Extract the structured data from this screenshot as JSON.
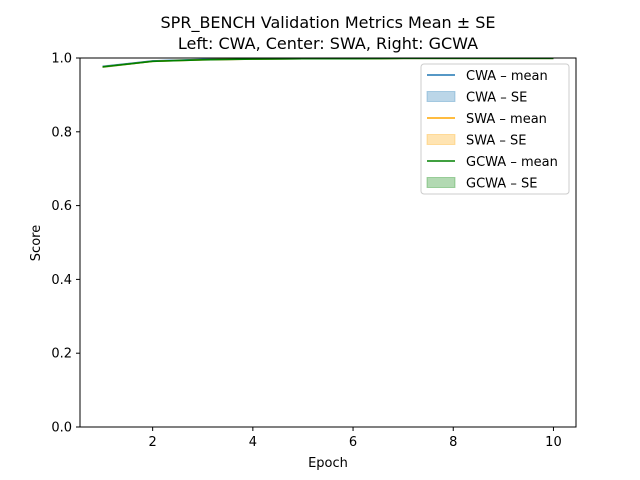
{
  "chart_data": {
    "type": "line",
    "title": "SPR_BENCH Validation Metrics Mean ± SE",
    "subtitle": "Left: CWA, Center: SWA, Right: GCWA",
    "xlabel": "Epoch",
    "ylabel": "Score",
    "xlim": [
      0.55,
      10.45
    ],
    "ylim": [
      0.0,
      1.0
    ],
    "xticks": [
      2,
      4,
      6,
      8,
      10
    ],
    "yticks": [
      0.0,
      0.2,
      0.4,
      0.6,
      0.8,
      1.0
    ],
    "ytick_labels": [
      "0.0",
      "0.2",
      "0.4",
      "0.6",
      "0.8",
      "1.0"
    ],
    "grid": false,
    "legend_position": "top-right",
    "x": [
      1,
      2,
      3,
      4,
      5,
      6,
      7,
      8,
      9,
      10
    ],
    "series": [
      {
        "name": "CWA – mean",
        "se_name": "CWA – SE",
        "color": "#1f77b4",
        "values": [
          0.977,
          0.992,
          0.996,
          0.997,
          0.998,
          0.998,
          0.999,
          0.999,
          0.999,
          0.999
        ],
        "se": [
          0.003,
          0.002,
          0.001,
          0.001,
          0.001,
          0.001,
          0.001,
          0.001,
          0.001,
          0.001
        ]
      },
      {
        "name": "SWA – mean",
        "se_name": "SWA – SE",
        "color": "#ffa500",
        "values": [
          0.976,
          0.991,
          0.995,
          0.997,
          0.998,
          0.998,
          0.999,
          0.999,
          0.999,
          0.999
        ],
        "se": [
          0.003,
          0.002,
          0.001,
          0.001,
          0.001,
          0.001,
          0.001,
          0.001,
          0.001,
          0.001
        ]
      },
      {
        "name": "GCWA – mean",
        "se_name": "GCWA – SE",
        "color": "#008000",
        "values": [
          0.976,
          0.991,
          0.995,
          0.997,
          0.998,
          0.998,
          0.999,
          0.999,
          0.999,
          0.999
        ],
        "se": [
          0.003,
          0.002,
          0.001,
          0.001,
          0.001,
          0.001,
          0.001,
          0.001,
          0.001,
          0.001
        ]
      }
    ]
  }
}
